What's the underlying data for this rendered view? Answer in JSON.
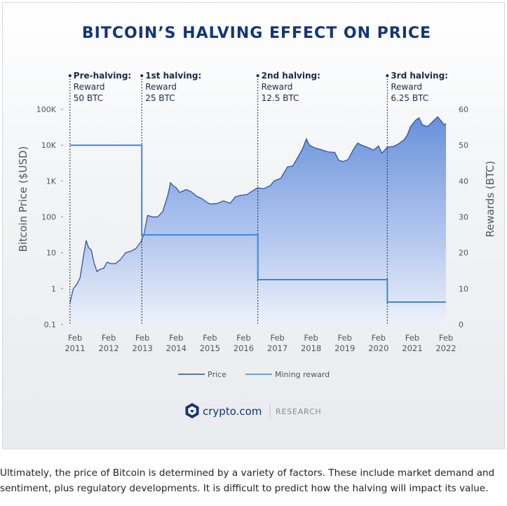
{
  "chart_data": {
    "type": "line",
    "title": "BITCOIN’S HALVING EFFECT ON PRICE",
    "ylabel": "Bitcoin Price ($USD)",
    "y2label": "Rewards (BTC)",
    "yscale": "log",
    "ylim": [
      0.1,
      100000
    ],
    "y2lim": [
      0,
      60
    ],
    "y_ticks": [
      "100K",
      "10K",
      "1K",
      "100",
      "10",
      "1",
      "0.1"
    ],
    "y_tick_values": [
      100000,
      10000,
      1000,
      100,
      10,
      1,
      0.1
    ],
    "y2_ticks": [
      "60",
      "50",
      "40",
      "30",
      "20",
      "10",
      "0"
    ],
    "y2_tick_values": [
      60,
      50,
      40,
      30,
      20,
      10,
      0
    ],
    "x_ticks": [
      {
        "month": "Feb",
        "year": "2011",
        "t": 2011.1
      },
      {
        "month": "Feb",
        "year": "2012",
        "t": 2012.1
      },
      {
        "month": "Feb",
        "year": "2013",
        "t": 2013.1
      },
      {
        "month": "Feb",
        "year": "2014",
        "t": 2014.1
      },
      {
        "month": "Feb",
        "year": "2015",
        "t": 2015.1
      },
      {
        "month": "Feb",
        "year": "2016",
        "t": 2016.1
      },
      {
        "month": "Feb",
        "year": "2017",
        "t": 2017.1
      },
      {
        "month": "Feb",
        "year": "2018",
        "t": 2018.1
      },
      {
        "month": "Feb",
        "year": "2019",
        "t": 2019.1
      },
      {
        "month": "Feb",
        "year": "2020",
        "t": 2020.1
      },
      {
        "month": "Feb",
        "year": "2021",
        "t": 2021.1
      },
      {
        "month": "Feb",
        "year": "2022",
        "t": 2022.1
      }
    ],
    "xlim": [
      2011.1,
      2022.1
    ],
    "halvings": [
      {
        "t": 2010.95,
        "label": "Pre-halving:",
        "line1": "Reward",
        "line2": "50 BTC"
      },
      {
        "t": 2013.08,
        "label": "1st halving:",
        "line1": "Reward",
        "line2": "25 BTC"
      },
      {
        "t": 2016.52,
        "label": "2nd halving:",
        "line1": "Reward",
        "line2": "12.5 BTC"
      },
      {
        "t": 2020.36,
        "label": "3rd halving:",
        "line1": "Reward",
        "line2": "6.25 BTC"
      }
    ],
    "series": [
      {
        "name": "Price",
        "color": "#2b4a9c",
        "points": [
          [
            2010.95,
            0.4
          ],
          [
            2011.05,
            1.0
          ],
          [
            2011.15,
            1.3
          ],
          [
            2011.25,
            2.0
          ],
          [
            2011.35,
            8
          ],
          [
            2011.43,
            22
          ],
          [
            2011.5,
            14
          ],
          [
            2011.58,
            12
          ],
          [
            2011.67,
            5
          ],
          [
            2011.75,
            3
          ],
          [
            2011.85,
            3.5
          ],
          [
            2011.95,
            3.7
          ],
          [
            2012.05,
            5.5
          ],
          [
            2012.15,
            5
          ],
          [
            2012.3,
            5
          ],
          [
            2012.45,
            6.5
          ],
          [
            2012.6,
            10
          ],
          [
            2012.75,
            11
          ],
          [
            2012.9,
            13
          ],
          [
            2013.05,
            20
          ],
          [
            2013.15,
            35
          ],
          [
            2013.25,
            110
          ],
          [
            2013.4,
            100
          ],
          [
            2013.55,
            100
          ],
          [
            2013.7,
            140
          ],
          [
            2013.85,
            400
          ],
          [
            2013.93,
            900
          ],
          [
            2014.0,
            750
          ],
          [
            2014.1,
            650
          ],
          [
            2014.2,
            480
          ],
          [
            2014.4,
            580
          ],
          [
            2014.55,
            500
          ],
          [
            2014.7,
            380
          ],
          [
            2014.85,
            330
          ],
          [
            2015.0,
            260
          ],
          [
            2015.1,
            230
          ],
          [
            2015.3,
            235
          ],
          [
            2015.5,
            280
          ],
          [
            2015.7,
            240
          ],
          [
            2015.85,
            360
          ],
          [
            2016.0,
            400
          ],
          [
            2016.2,
            420
          ],
          [
            2016.4,
            560
          ],
          [
            2016.52,
            650
          ],
          [
            2016.7,
            610
          ],
          [
            2016.9,
            760
          ],
          [
            2017.0,
            1000
          ],
          [
            2017.2,
            1200
          ],
          [
            2017.4,
            2500
          ],
          [
            2017.55,
            2600
          ],
          [
            2017.7,
            4500
          ],
          [
            2017.85,
            8000
          ],
          [
            2017.96,
            15000
          ],
          [
            2018.05,
            10000
          ],
          [
            2018.2,
            8500
          ],
          [
            2018.4,
            7500
          ],
          [
            2018.6,
            6500
          ],
          [
            2018.8,
            6300
          ],
          [
            2018.92,
            3800
          ],
          [
            2019.05,
            3500
          ],
          [
            2019.2,
            4000
          ],
          [
            2019.35,
            7500
          ],
          [
            2019.48,
            11500
          ],
          [
            2019.6,
            10000
          ],
          [
            2019.8,
            8500
          ],
          [
            2019.95,
            7300
          ],
          [
            2020.1,
            9500
          ],
          [
            2020.2,
            6000
          ],
          [
            2020.36,
            8800
          ],
          [
            2020.55,
            9300
          ],
          [
            2020.7,
            11000
          ],
          [
            2020.85,
            14000
          ],
          [
            2020.95,
            19000
          ],
          [
            2021.05,
            33000
          ],
          [
            2021.2,
            50000
          ],
          [
            2021.3,
            58000
          ],
          [
            2021.4,
            37000
          ],
          [
            2021.55,
            33000
          ],
          [
            2021.7,
            45000
          ],
          [
            2021.85,
            62000
          ],
          [
            2021.95,
            48000
          ],
          [
            2022.05,
            37000
          ],
          [
            2022.1,
            40000
          ]
        ]
      },
      {
        "name": "Mining reward",
        "color": "#3d86e5",
        "axis": "right",
        "steps": [
          {
            "from": 2010.95,
            "to": 2013.08,
            "value": 50
          },
          {
            "from": 2013.08,
            "to": 2016.52,
            "value": 25
          },
          {
            "from": 2016.52,
            "to": 2020.36,
            "value": 12.5
          },
          {
            "from": 2020.36,
            "to": 2022.1,
            "value": 6.25
          }
        ]
      }
    ],
    "legend": [
      "Price",
      "Mining reward"
    ],
    "legend_position": "bottom-center",
    "brand": {
      "name": "crypto.com",
      "tag": "RESEARCH"
    }
  },
  "caption": {
    "line1": "Ultimately, the price of Bitcoin is determined by a variety of factors. These include market demand and",
    "line2": "sentiment, plus regulatory developments. It is difficult to predict how the halving will impact its value."
  },
  "colors": {
    "title": "#14357a",
    "annotation": "#1c2a4a",
    "price": "#2b4a9c",
    "reward": "#3d86e5",
    "axis_text": "#555555"
  }
}
